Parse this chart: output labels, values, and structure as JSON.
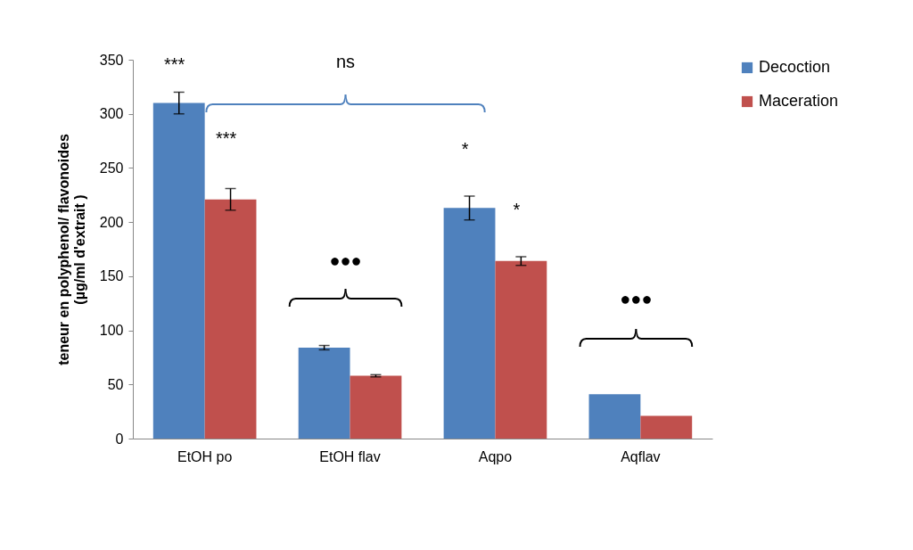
{
  "chart_data": {
    "type": "bar",
    "ylabel": "teneur en polyphenol/ flavonoides\n(µg/ml d'extrait )",
    "categories": [
      "EtOH po",
      "EtOH flav",
      "Aqpo",
      "Aqflav"
    ],
    "series": [
      {
        "name": "Decoction",
        "color": "#4f81bd",
        "values": [
          310,
          84,
          213,
          41
        ],
        "errors": [
          10,
          2,
          11,
          null
        ]
      },
      {
        "name": "Maceration",
        "color": "#c0504d",
        "values": [
          221,
          58,
          164,
          21
        ],
        "errors": [
          10,
          1,
          4,
          null
        ]
      }
    ],
    "ylim": [
      0,
      350
    ],
    "yticks": [
      0,
      50,
      100,
      150,
      200,
      250,
      300,
      350
    ],
    "grid": false,
    "legend": "right",
    "annotations": [
      "***",
      "***",
      "ns",
      "●●●",
      "*",
      "*",
      "●●●"
    ]
  }
}
